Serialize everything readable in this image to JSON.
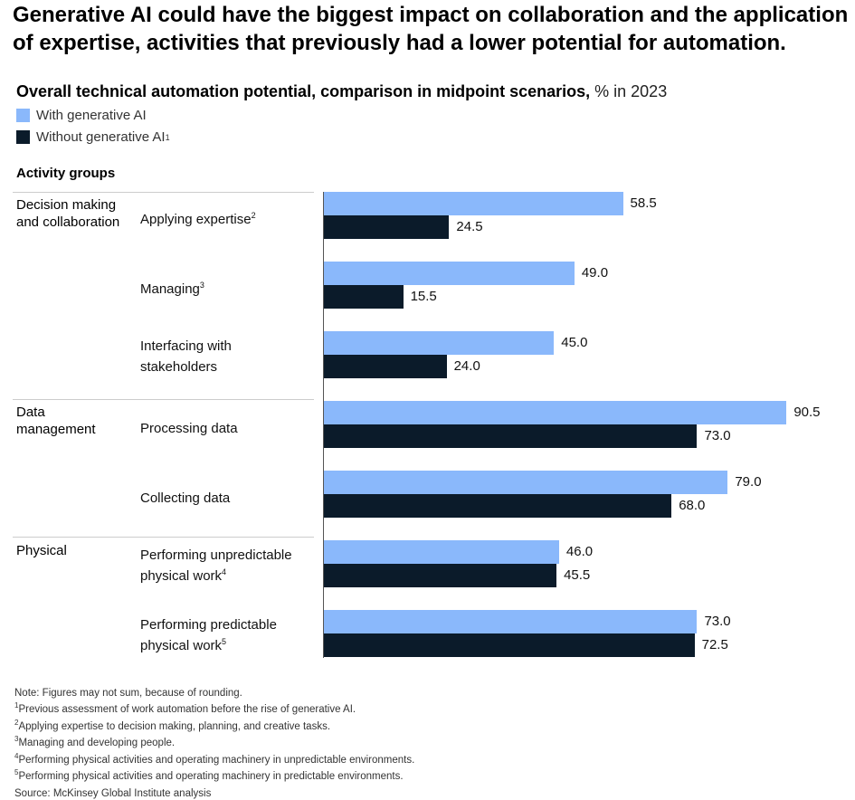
{
  "title": "Generative AI could have the biggest impact on collaboration and the application of expertise, activities that previously had a lower potential for automation.",
  "colors": {
    "with_ai": "#8ab8fb",
    "without_ai": "#0b1b2a"
  },
  "chart_data": {
    "type": "bar",
    "orientation": "horizontal",
    "title": "Overall technical automation potential, comparison in midpoint scenarios,",
    "unit": "% in 2023",
    "ylabel": "Activity groups",
    "xlim": [
      0,
      100
    ],
    "legend": [
      {
        "name": "With generative AI",
        "sup": ""
      },
      {
        "name": "Without generative AI",
        "sup": "1"
      }
    ],
    "groups": [
      {
        "name": "Decision making and collaboration"
      },
      {
        "name": "Data management"
      },
      {
        "name": "Physical"
      }
    ],
    "categories": [
      {
        "label": "Applying expertise",
        "sup": "2"
      },
      {
        "label": "Managing",
        "sup": "3"
      },
      {
        "label": "Interfacing with stakeholders",
        "sup": ""
      },
      {
        "label": "Processing data",
        "sup": ""
      },
      {
        "label": "Collecting data",
        "sup": ""
      },
      {
        "label": "Performing unpredictable physical work",
        "sup": "4"
      },
      {
        "label": "Performing predictable physical work",
        "sup": "5"
      }
    ],
    "series": [
      {
        "name": "With generative AI",
        "values": [
          58.5,
          49.0,
          45.0,
          90.5,
          79.0,
          46.0,
          73.0
        ],
        "labels": [
          "58.5",
          "49.0",
          "45.0",
          "90.5",
          "79.0",
          "46.0",
          "73.0"
        ]
      },
      {
        "name": "Without generative AI",
        "values": [
          24.5,
          15.5,
          24.0,
          73.0,
          68.0,
          45.5,
          72.5
        ],
        "labels": [
          "24.5",
          "15.5",
          "24.0",
          "73.0",
          "68.0",
          "45.5",
          "72.5"
        ]
      }
    ]
  },
  "notes": [
    {
      "sup": "",
      "text": "Note: Figures may not sum, because of rounding."
    },
    {
      "sup": "1",
      "text": "Previous assessment of work automation before the rise of generative AI."
    },
    {
      "sup": "2",
      "text": "Applying expertise to decision making, planning, and creative tasks."
    },
    {
      "sup": "3",
      "text": "Managing and developing people."
    },
    {
      "sup": "4",
      "text": "Performing physical activities and operating machinery in unpredictable environments."
    },
    {
      "sup": "5",
      "text": "Performing physical activities and operating machinery in predictable environments."
    },
    {
      "sup": "",
      "text": "Source: McKinsey Global Institute analysis"
    }
  ]
}
